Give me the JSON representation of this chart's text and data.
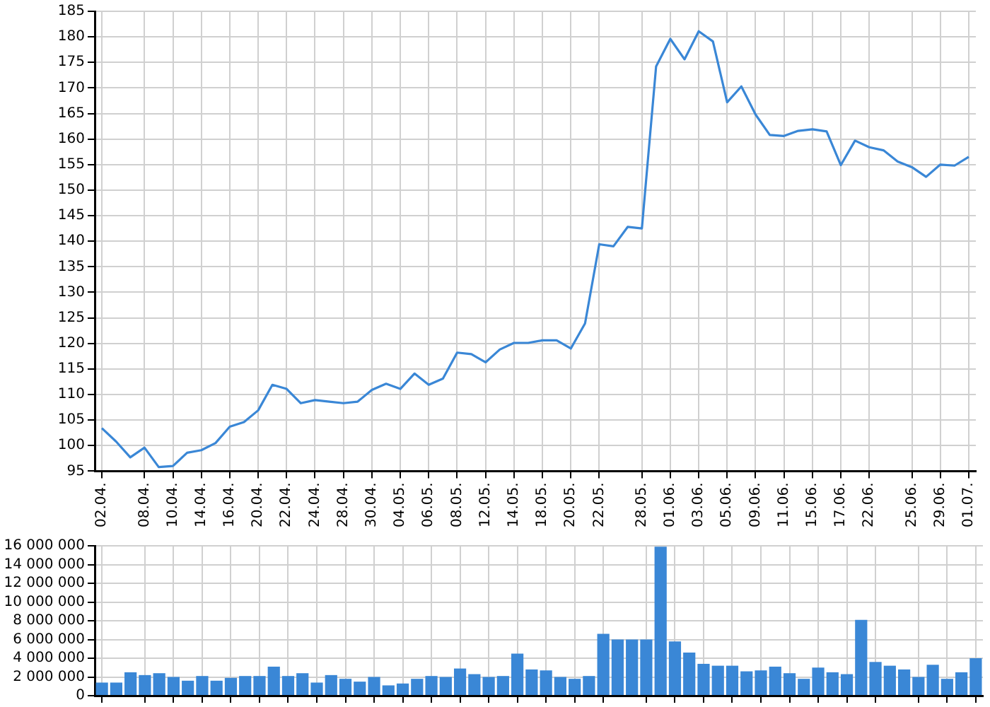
{
  "chart_data": [
    {
      "type": "line",
      "categories": [
        "02.04.",
        null,
        null,
        "08.04.",
        null,
        "10.04.",
        null,
        "14.04.",
        null,
        "16.04.",
        null,
        "20.04.",
        null,
        "22.04.",
        null,
        "24.04.",
        null,
        "28.04.",
        null,
        "30.04.",
        null,
        "04.05.",
        null,
        "06.05.",
        null,
        "08.05.",
        null,
        "12.05.",
        null,
        "14.05.",
        null,
        "18.05.",
        null,
        "20.05.",
        null,
        "22.05.",
        null,
        null,
        "28.05.",
        null,
        "01.06.",
        null,
        "03.06.",
        null,
        "05.06.",
        null,
        "09.06.",
        null,
        "11.06.",
        null,
        "15.06.",
        null,
        "17.06.",
        null,
        "22.06.",
        null,
        null,
        "25.06.",
        null,
        "29.06.",
        null,
        "01.07."
      ],
      "values": [
        103.4,
        100.8,
        97.7,
        99.6,
        95.8,
        96.0,
        98.6,
        99.1,
        100.5,
        103.7,
        104.6,
        106.9,
        111.9,
        111.1,
        108.3,
        108.9,
        108.6,
        108.3,
        108.6,
        110.9,
        112.1,
        111.1,
        114.1,
        111.9,
        113.1,
        118.2,
        117.9,
        116.3,
        118.8,
        120.1,
        120.1,
        120.6,
        120.6,
        119.0,
        123.9,
        139.4,
        139.0,
        142.8,
        142.5,
        174.2,
        179.6,
        175.6,
        181.1,
        179.1,
        167.2,
        170.3,
        164.8,
        160.8,
        160.6,
        161.6,
        161.9,
        161.5,
        154.9,
        159.7,
        158.4,
        157.8,
        155.6,
        154.5,
        152.6,
        155.0,
        154.8,
        156.5
      ],
      "color": "#3a87d6",
      "ylim": [
        95,
        185
      ],
      "yticks": [
        95,
        100,
        105,
        110,
        115,
        120,
        125,
        130,
        135,
        140,
        145,
        150,
        155,
        160,
        165,
        170,
        175,
        180,
        185
      ],
      "grid": true,
      "marker": "none",
      "legend": false
    },
    {
      "type": "bar",
      "categories": [
        "02.04.",
        null,
        null,
        "08.04.",
        null,
        "10.04.",
        null,
        "14.04.",
        null,
        "16.04.",
        null,
        "20.04.",
        null,
        "22.04.",
        null,
        "24.04.",
        null,
        "28.04.",
        null,
        "30.04.",
        null,
        "04.05.",
        null,
        "06.05.",
        null,
        "08.05.",
        null,
        "12.05.",
        null,
        "14.05.",
        null,
        "18.05.",
        null,
        "20.05.",
        null,
        "22.05.",
        null,
        null,
        "28.05.",
        null,
        "01.06.",
        null,
        "03.06.",
        null,
        "05.06.",
        null,
        "09.06.",
        null,
        "11.06.",
        null,
        "15.06.",
        null,
        "17.06.",
        null,
        "22.06.",
        null,
        null,
        "25.06.",
        null,
        "29.06.",
        null,
        "01.07."
      ],
      "values": [
        1400000,
        1400000,
        2500000,
        2200000,
        2400000,
        2000000,
        1600000,
        2100000,
        1600000,
        1900000,
        2100000,
        2100000,
        3100000,
        2100000,
        2400000,
        1400000,
        2200000,
        1800000,
        1500000,
        2000000,
        1100000,
        1300000,
        1800000,
        2100000,
        2000000,
        2900000,
        2300000,
        2000000,
        2100000,
        4500000,
        2800000,
        2700000,
        2000000,
        1800000,
        2100000,
        6600000,
        6000000,
        6000000,
        6000000,
        15900000,
        5800000,
        4600000,
        3400000,
        3200000,
        3200000,
        2600000,
        2700000,
        3100000,
        2400000,
        1800000,
        3000000,
        2500000,
        2300000,
        8100000,
        3600000,
        3200000,
        2800000,
        2000000,
        3300000,
        1800000,
        2500000,
        4000000
      ],
      "color": "#3a87d6",
      "ylim": [
        0,
        16000000
      ],
      "yticks": [
        {
          "value": 0,
          "label": "0"
        },
        {
          "value": 2000000,
          "label": "2 000 000"
        },
        {
          "value": 4000000,
          "label": "4 000 000"
        },
        {
          "value": 6000000,
          "label": "6 000 000"
        },
        {
          "value": 8000000,
          "label": "8 000 000"
        },
        {
          "value": 10000000,
          "label": "10 000 000"
        },
        {
          "value": 12000000,
          "label": "12 000 000"
        },
        {
          "value": 14000000,
          "label": "14 000 000"
        },
        {
          "value": 16000000,
          "label": "16 000 000"
        }
      ],
      "grid": true,
      "tick_labels": "y",
      "legend": false
    }
  ]
}
